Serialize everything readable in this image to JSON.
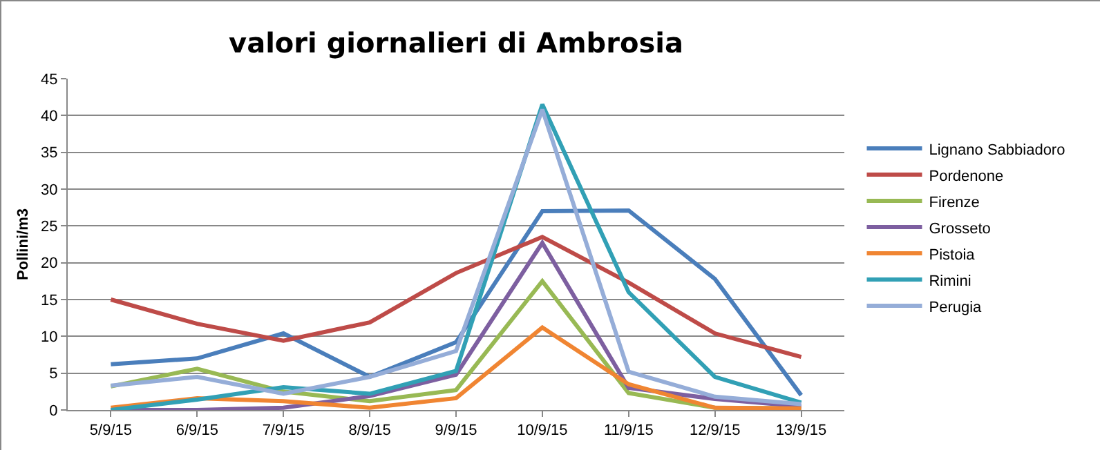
{
  "chart_data": {
    "type": "line",
    "title": "valori giornalieri di Ambrosia",
    "ylabel": "Pollini/m3",
    "categories": [
      "5/9/15",
      "6/9/15",
      "7/9/15",
      "8/9/15",
      "9/9/15",
      "10/9/15",
      "11/9/15",
      "12/9/15",
      "13/9/15"
    ],
    "ylim": [
      0,
      45
    ],
    "yticks": [
      0,
      5,
      10,
      15,
      20,
      25,
      30,
      35,
      40,
      45
    ],
    "grid": "y",
    "legend": "right",
    "marker": "none",
    "line_style": "solid",
    "series": [
      {
        "name": "Lignano Sabbiadoro",
        "color": "#4a7ebb",
        "values": [
          6.2,
          7,
          10.4,
          4.5,
          9.2,
          27,
          27.1,
          17.8,
          2
        ]
      },
      {
        "name": "Pordenone",
        "color": "#be4b48",
        "values": [
          15,
          11.7,
          9.4,
          11.9,
          18.6,
          23.5,
          17.3,
          10.4,
          7.2
        ]
      },
      {
        "name": "Firenze",
        "color": "#98b954",
        "values": [
          3.2,
          5.6,
          2.5,
          1.2,
          2.7,
          17.5,
          2.3,
          0.3,
          0.2
        ]
      },
      {
        "name": "Grosseto",
        "color": "#7d5fa0",
        "values": [
          0,
          0,
          0.3,
          1.9,
          4.8,
          22.7,
          3,
          1.5,
          0.5
        ]
      },
      {
        "name": "Pistoia",
        "color": "#f08532",
        "values": [
          0.3,
          1.6,
          1.2,
          0.3,
          1.6,
          11.2,
          3.5,
          0.3,
          0.2
        ]
      },
      {
        "name": "Rimini",
        "color": "#31a0b5",
        "values": [
          0,
          1.4,
          3.1,
          2.2,
          5.3,
          41.5,
          16,
          4.5,
          1
        ]
      },
      {
        "name": "Perugia",
        "color": "#95add8",
        "values": [
          3.3,
          4.5,
          2.2,
          4.5,
          8,
          40.8,
          5.2,
          1.8,
          0.8
        ]
      }
    ]
  }
}
